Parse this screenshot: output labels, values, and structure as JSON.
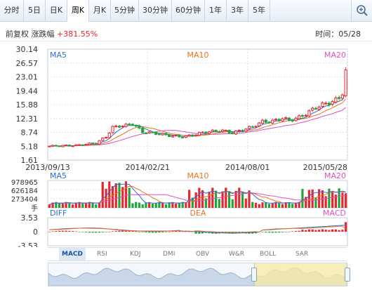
{
  "tabs": [
    "分时",
    "5日",
    "日K",
    "周K",
    "月K",
    "5分钟",
    "30分钟",
    "60分钟",
    "1年",
    "3年",
    "5年"
  ],
  "active_tab": "周K",
  "info": {
    "adjust": "前复权",
    "change_label": "涨跌幅",
    "change_value": "+381.55%",
    "time_label": "时间：05/28"
  },
  "indicator_tabs": [
    "MACD",
    "RSI",
    "KDJ",
    "DMI",
    "OBV",
    "W&R",
    "BOLL",
    "SAR"
  ],
  "active_indicator": "MACD",
  "colors": {
    "up": "#e8262e",
    "down": "#1fa63a",
    "ma5": "#2f6bd6",
    "ma10": "#e8741c",
    "ma20": "#e04fc0",
    "accent": "#1b4fa0"
  },
  "chart_data": [
    {
      "type": "candlestick",
      "legend": [
        "MA5",
        "MA10",
        "MA20"
      ],
      "y_ticks": [
        "30.14",
        "26.57",
        "23.01",
        "19.44",
        "15.88",
        "12.31",
        "8.74",
        "5.18",
        "1.61"
      ],
      "ylim": [
        1.61,
        30.14
      ],
      "x_labels": [
        "2013/09/13",
        "2014/02/21",
        "2014/08/01",
        "2015/05/28"
      ],
      "x_range": [
        "2013/09/13",
        "2015/05/28"
      ],
      "close_anchors": [
        [
          0,
          5.2
        ],
        [
          8,
          5.4
        ],
        [
          14,
          6.0
        ],
        [
          17,
          7.6
        ],
        [
          19,
          10.0
        ],
        [
          21,
          10.4
        ],
        [
          23,
          10.5
        ],
        [
          25,
          11.0
        ],
        [
          28,
          8.8
        ],
        [
          31,
          8.6
        ],
        [
          34,
          8.2
        ],
        [
          37,
          7.8
        ],
        [
          40,
          7.6
        ],
        [
          43,
          8.0
        ],
        [
          46,
          8.7
        ],
        [
          49,
          9.0
        ],
        [
          52,
          9.2
        ],
        [
          55,
          8.6
        ],
        [
          58,
          9.4
        ],
        [
          61,
          10.2
        ],
        [
          64,
          11.5
        ],
        [
          67,
          11.6
        ],
        [
          70,
          12.4
        ],
        [
          72,
          11.8
        ],
        [
          75,
          12.6
        ],
        [
          78,
          14.0
        ],
        [
          80,
          15.2
        ],
        [
          82,
          15.8
        ],
        [
          84,
          16.4
        ],
        [
          86,
          17.0
        ],
        [
          87,
          17.6
        ],
        [
          88,
          19.0
        ],
        [
          89,
          24.8
        ]
      ]
    },
    {
      "type": "bar",
      "legend": [
        "MA5",
        "MA10",
        "MA20"
      ],
      "y_ticks": [
        "978965",
        "626184",
        "273404"
      ],
      "unit": "手",
      "ylim": [
        0,
        978965
      ]
    },
    {
      "type": "bar",
      "legend": [
        "DIFF",
        "DEA",
        "MACD"
      ],
      "y_ticks": [
        "3.53",
        "0",
        "-3.53"
      ],
      "ylim": [
        -3.53,
        3.53
      ]
    }
  ]
}
